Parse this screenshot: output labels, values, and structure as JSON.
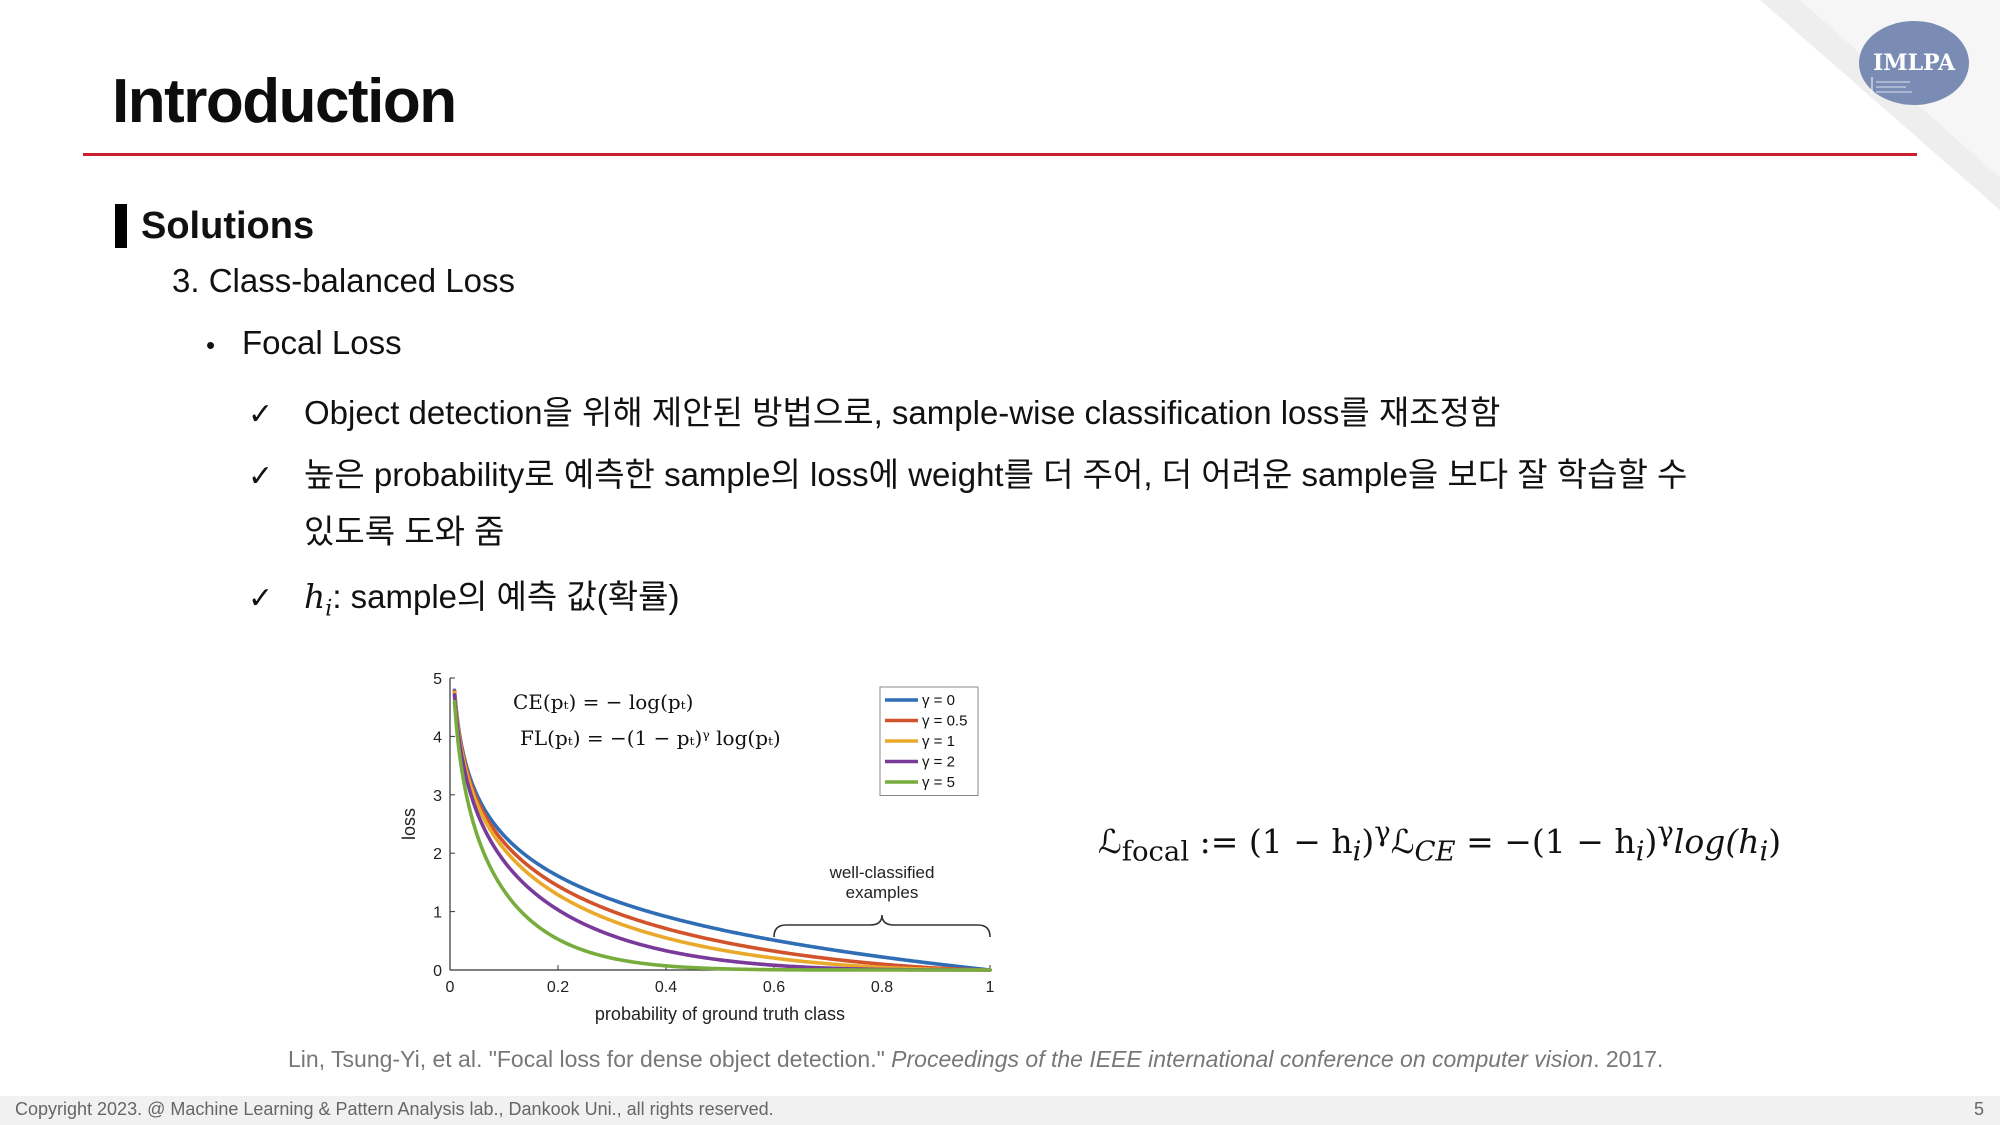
{
  "slide": {
    "title": "Introduction",
    "section": "Solutions",
    "item_number_text": "3. Class-balanced Loss",
    "bullet": "Focal Loss",
    "checks": [
      "Object detection을 위해 제안된 방법으로, sample-wise classification loss를 재조정함",
      "높은 probability로 예측한 sample의 loss에 weight를 더 주어, 더 어려운 sample을 보다 잘 학습할 수",
      "있도록 도와 줌"
    ],
    "hi_var": "h",
    "hi_sub": "i",
    "hi_desc": ": sample의 예측 값(확률)",
    "logo_text": "IMLPA"
  },
  "formula": {
    "text_a": "ℒ",
    "sub_a": "focal",
    "text_b": " := (1 − h",
    "sub_b": "i",
    "text_c": ")",
    "sup_c": "γ",
    "text_d": "ℒ",
    "sub_d": "CE",
    "text_e": " = −(1 − h",
    "sub_e": "i",
    "text_f": ")",
    "sup_f": "γ",
    "text_g": "log(h",
    "sub_g": "i",
    "text_h": ")"
  },
  "citation": {
    "authors": "Lin, Tsung-Yi, et al. \"Focal loss for dense object detection.\" ",
    "venue": "Proceedings of the IEEE international conference on computer vision",
    "year": ". 2017."
  },
  "footer": {
    "copyright": "Copyright 2023. @ Machine Learning & Pattern Analysis lab., Dankook Uni., all rights reserved.",
    "page_number": "5"
  },
  "chart_data": {
    "type": "line",
    "xlabel": "probability of ground truth class",
    "ylabel": "loss",
    "xlim": [
      0,
      1
    ],
    "ylim": [
      0,
      5
    ],
    "x_ticks": [
      "0",
      "0.2",
      "0.4",
      "0.6",
      "0.8",
      "1"
    ],
    "y_ticks": [
      "0",
      "1",
      "2",
      "3",
      "4",
      "5"
    ],
    "formula_ce": "CE(pₜ) = − log(pₜ)",
    "formula_fl": "FL(pₜ) = −(1 − pₜ)ᵞ log(pₜ)",
    "annotation": [
      "well-classified",
      "examples"
    ],
    "annotation_range": [
      0.6,
      1
    ],
    "legend_position": "top-right",
    "series": [
      {
        "name": "γ = 0",
        "gamma": 0,
        "color": "#2f6db5"
      },
      {
        "name": "γ = 0.5",
        "gamma": 0.5,
        "color": "#d2532b"
      },
      {
        "name": "γ = 1",
        "gamma": 1,
        "color": "#e9aa2c"
      },
      {
        "name": "γ = 2",
        "gamma": 2,
        "color": "#7a3a9a"
      },
      {
        "name": "γ = 5",
        "gamma": 5,
        "color": "#78ad3e"
      }
    ]
  },
  "colors": {
    "accent_rule": "#c8202f",
    "logo_fill": "#7a8cb4"
  }
}
